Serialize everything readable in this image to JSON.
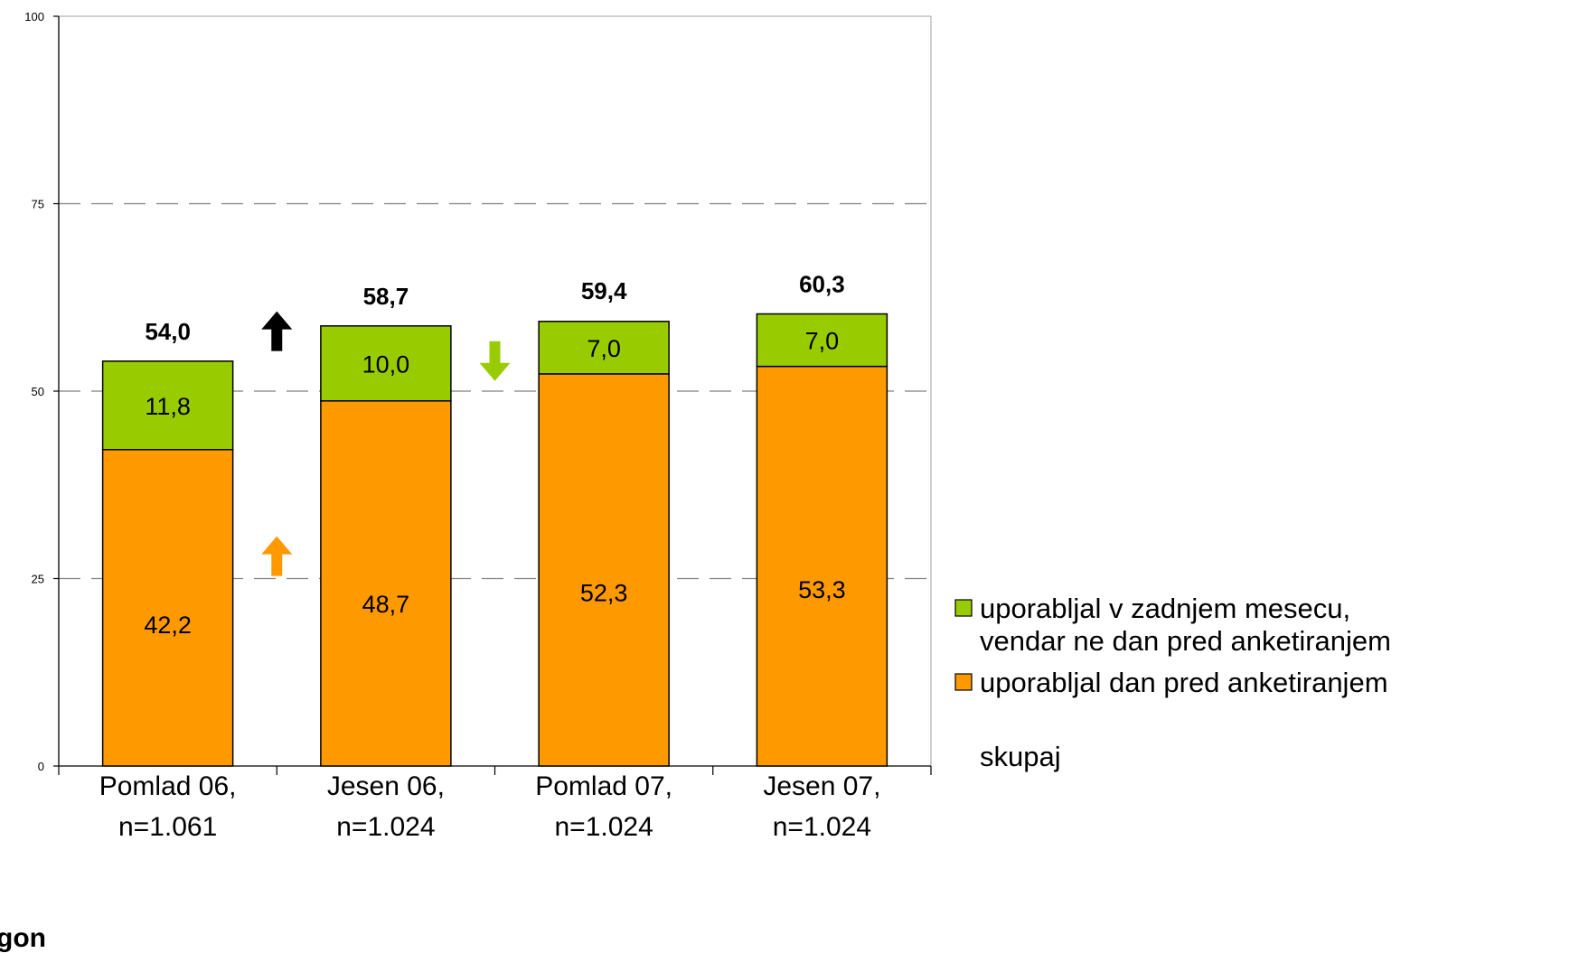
{
  "colors": {
    "green": "#99cc00",
    "orange": "#ff9900",
    "arrow_black": "#000000",
    "gridline": "#808080"
  },
  "chart_data": {
    "type": "bar",
    "stacked": true,
    "title": "",
    "title_partial_visible": true,
    "xlabel": "",
    "ylabel": "",
    "ylim": [
      0,
      100
    ],
    "yticks": [
      "0",
      "25",
      "50",
      "75",
      "100"
    ],
    "grid": {
      "horizontal": true,
      "style": "dashed"
    },
    "legend_position": "right",
    "categories": [
      [
        "Pomlad 06,",
        "n=1.061"
      ],
      [
        "Jesen 06,",
        "n=1.024"
      ],
      [
        "Pomlad 07,",
        "n=1.024"
      ],
      [
        "Jesen 07,",
        "n=1.024"
      ]
    ],
    "series": [
      {
        "name": "uporabljal dan pred anketiranjem",
        "color": "#ff9900",
        "values": [
          42.2,
          48.7,
          52.3,
          53.3
        ],
        "labels": [
          "42,2",
          "48,7",
          "52,3",
          "53,3"
        ]
      },
      {
        "name": "uporabljal v zadnjem mesecu, vendar ne dan pred anketiranjem",
        "color": "#99cc00",
        "values": [
          11.8,
          10.0,
          7.0,
          7.0
        ],
        "labels": [
          "11,8",
          "10,0",
          "7,0",
          "7,0"
        ]
      }
    ],
    "totals": {
      "name": "skupaj",
      "values": [
        54.0,
        58.7,
        59.4,
        60.3
      ],
      "labels": [
        "54,0",
        "58,7",
        "59,4",
        "60,3"
      ]
    },
    "legend": [
      {
        "lines": [
          "uporabljal v zadnjem mesecu,",
          "vendar ne dan pred anketiranjem"
        ],
        "color": "#99cc00",
        "swatch": true
      },
      {
        "lines": [
          "uporabljal dan pred anketiranjem"
        ],
        "color": "#ff9900",
        "swatch": true
      },
      {
        "lines": [
          "skupaj"
        ],
        "swatch": false
      }
    ],
    "annotations": [
      {
        "type": "arrow",
        "direction": "up",
        "color": "#000000",
        "between": [
          0,
          1
        ],
        "y": 58
      },
      {
        "type": "arrow",
        "direction": "up",
        "color": "#ff9900",
        "between": [
          0,
          1
        ],
        "y": 28
      },
      {
        "type": "arrow",
        "direction": "down",
        "color": "#99cc00",
        "between": [
          1,
          2
        ],
        "y": 54
      }
    ],
    "cut_off_text": "gon"
  }
}
